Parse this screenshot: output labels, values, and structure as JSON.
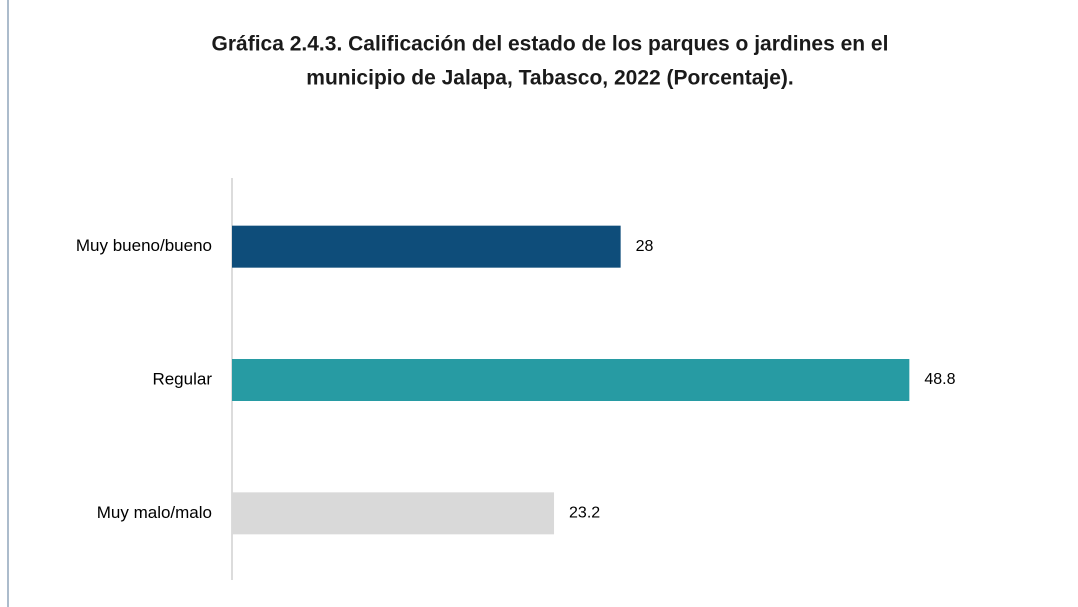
{
  "chart_data": {
    "type": "barh",
    "title": [
      "Gráfica 2.4.3. Calificación del estado de los parques o jardines en el",
      "municipio de Jalapa, Tabasco, 2022 (Porcentaje)."
    ],
    "categories": [
      "Muy bueno/bueno",
      "Regular",
      "Muy malo/malo"
    ],
    "values": [
      28,
      48.8,
      23.2
    ],
    "colors": [
      "#0e4d7a",
      "#279ba3",
      "#d9d9d9"
    ]
  }
}
